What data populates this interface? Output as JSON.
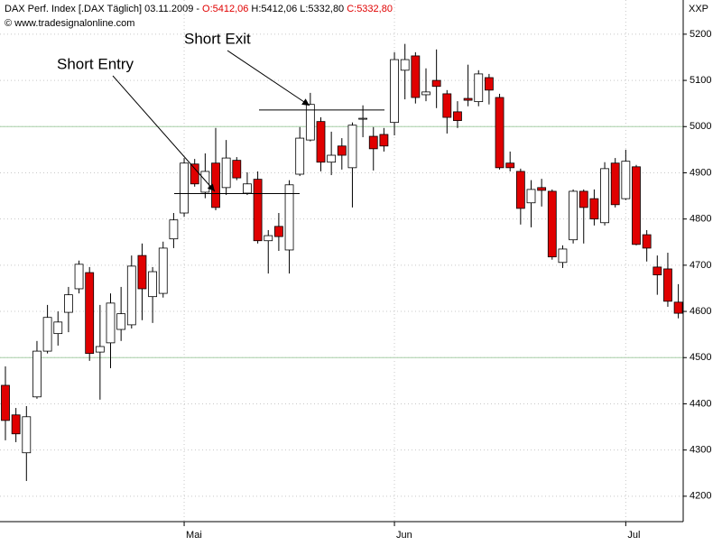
{
  "chart_data": {
    "type": "candlestick",
    "title_parts": [
      "DAX Perf. Index [.DAX Täglich] 03.11.2009 -",
      "O:5412,06",
      "H:5412,06 L:5332,80",
      "C:5332,80"
    ],
    "title_colors": [
      "#000000",
      "#e00000",
      "#000000",
      "#e00000"
    ],
    "corner_label": "XXP",
    "copyright": "© www.tradesignalonline.com",
    "categories": [
      null,
      null,
      null,
      null,
      null,
      null,
      null,
      null,
      null,
      null,
      null,
      null,
      null,
      null,
      null,
      null,
      null,
      "Mai",
      null,
      null,
      null,
      null,
      null,
      null,
      null,
      null,
      null,
      null,
      null,
      null,
      null,
      null,
      null,
      null,
      null,
      null,
      null,
      "Jun",
      null,
      null,
      null,
      null,
      null,
      null,
      null,
      null,
      null,
      null,
      null,
      null,
      null,
      null,
      null,
      null,
      null,
      null,
      null,
      null,
      null,
      "Jul",
      null,
      null,
      null,
      null,
      null
    ],
    "open": [
      4440,
      4376,
      4294,
      4415,
      4514,
      4552,
      4598,
      4649,
      4684,
      4512,
      4532,
      4561,
      4571,
      4721,
      4632,
      4639,
      4757,
      4813,
      4919,
      4858,
      4921,
      4868,
      4927,
      4856,
      4886,
      4753,
      4784,
      4733,
      4897,
      4971,
      5011,
      4923,
      4958,
      4911,
      5016,
      4979,
      4983,
      5009,
      5122,
      5153,
      5069,
      5100,
      5071,
      5032,
      5061,
      5054,
      5106,
      5063,
      4921,
      4903,
      4835,
      4868,
      4860,
      4706,
      4755,
      4860,
      4844,
      4792,
      4921,
      4844,
      4913,
      4766,
      4696,
      4692,
      4620
    ],
    "high": [
      4481,
      4391,
      4395,
      4536,
      4614,
      4600,
      4653,
      4710,
      4696,
      4614,
      4639,
      4653,
      4721,
      4747,
      4696,
      4751,
      4813,
      4932,
      4930,
      4942,
      4997,
      4971,
      4934,
      4901,
      4903,
      4776,
      4813,
      4884,
      4999,
      5073,
      5020,
      4989,
      4975,
      5009,
      5046,
      4999,
      4997,
      5161,
      5179,
      5161,
      5126,
      5167,
      5079,
      5055,
      5134,
      5122,
      5114,
      5071,
      4946,
      4909,
      4884,
      4887,
      4864,
      4743,
      4864,
      4864,
      4864,
      4923,
      4932,
      4950,
      4917,
      4776,
      4721,
      4727,
      4659
    ],
    "low": [
      4321,
      4317,
      4233,
      4411,
      4509,
      4526,
      4555,
      4639,
      4493,
      4409,
      4477,
      4536,
      4563,
      4581,
      4575,
      4630,
      4737,
      4805,
      4870,
      4845,
      4819,
      4852,
      4884,
      4852,
      4747,
      4682,
      4731,
      4682,
      4893,
      4968,
      4903,
      4895,
      4907,
      4825,
      4977,
      4905,
      4946,
      4981,
      5059,
      5050,
      5055,
      5040,
      4985,
      4997,
      5044,
      5044,
      5048,
      4907,
      4903,
      4788,
      4782,
      4827,
      4712,
      4694,
      4747,
      4747,
      4786,
      4786,
      4825,
      4841,
      4743,
      4708,
      4636,
      4610,
      4585
    ],
    "close": [
      4364,
      4335,
      4372,
      4514,
      4587,
      4577,
      4636,
      4702,
      4509,
      4524,
      4618,
      4595,
      4698,
      4649,
      4686,
      4737,
      4798,
      4921,
      4876,
      4903,
      4825,
      4932,
      4889,
      4876,
      4753,
      4764,
      4762,
      4874,
      4975,
      5048,
      4923,
      4938,
      4938,
      5003,
      5018,
      4952,
      4958,
      5145,
      5145,
      5063,
      5075,
      5087,
      5020,
      5013,
      5057,
      5114,
      5079,
      4911,
      4911,
      4823,
      4864,
      4862,
      4718,
      4735,
      4860,
      4825,
      4800,
      4909,
      4831,
      4925,
      4745,
      4737,
      4679,
      4622,
      4596
    ],
    "up_color": "#ffffff",
    "down_color": "#e00000",
    "ylim": [
      4145,
      5274
    ],
    "yticks": [
      4200,
      4300,
      4400,
      4500,
      4600,
      4700,
      4800,
      4900,
      5000,
      5100,
      5200
    ],
    "grid": true,
    "reference_lines": [
      4500,
      5000
    ],
    "reference_color": "#a8d0a8",
    "annotations": [
      {
        "text": "Short Entry",
        "value": 4855
      },
      {
        "text": "Short Exit",
        "value": 5036
      }
    ]
  }
}
